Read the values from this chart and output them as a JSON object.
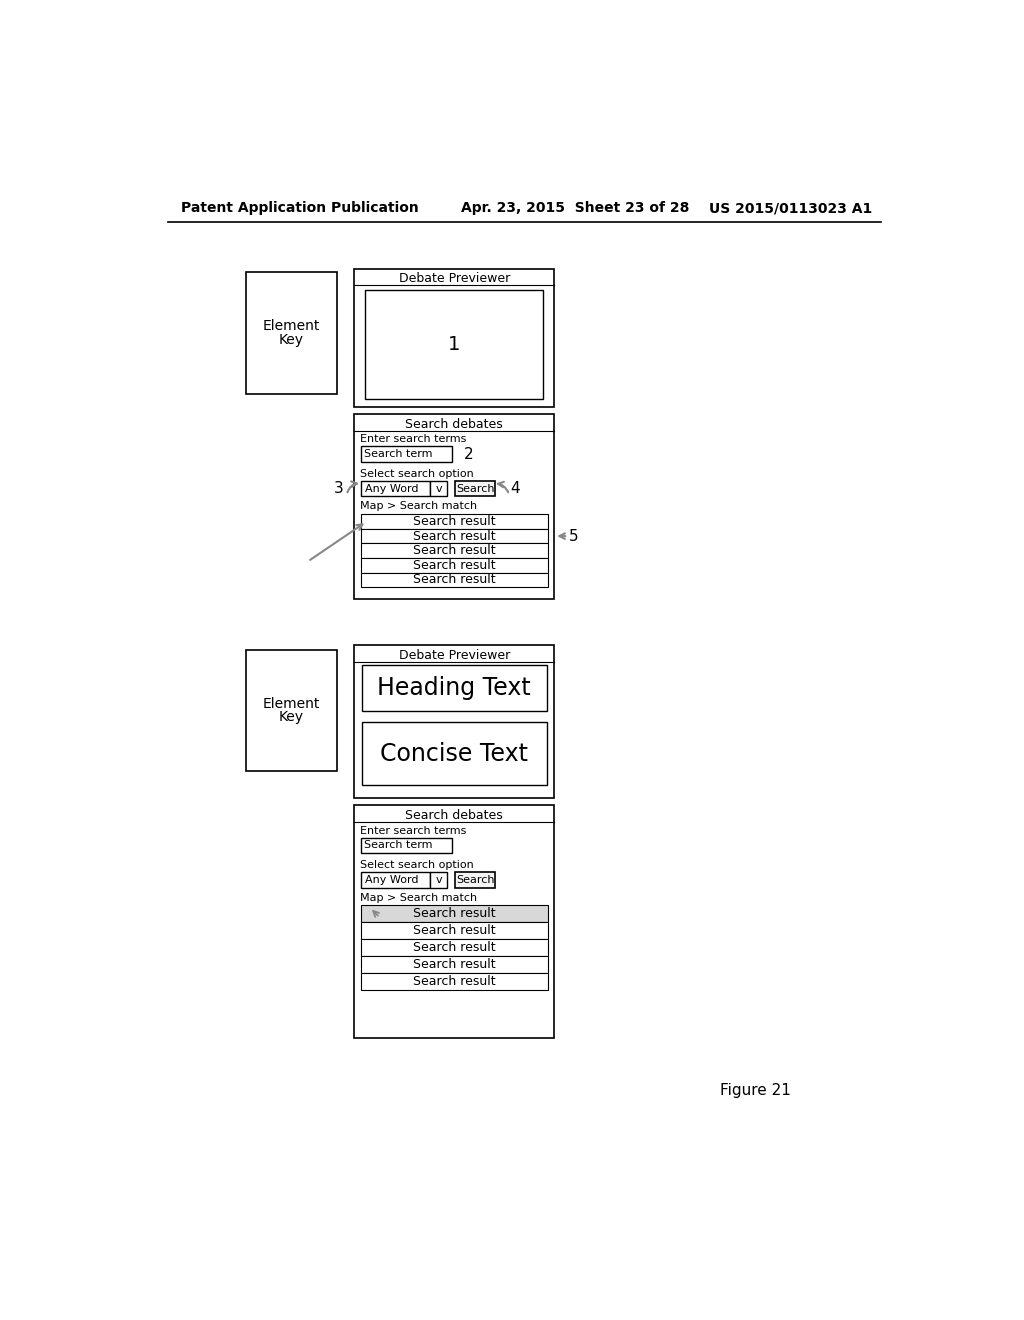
{
  "header_left": "Patent Application Publication",
  "header_center": "Apr. 23, 2015  Sheet 23 of 28",
  "header_right": "US 2015/0113023 A1",
  "figure_label": "Figure 21",
  "bg_color": "#ffffff"
}
